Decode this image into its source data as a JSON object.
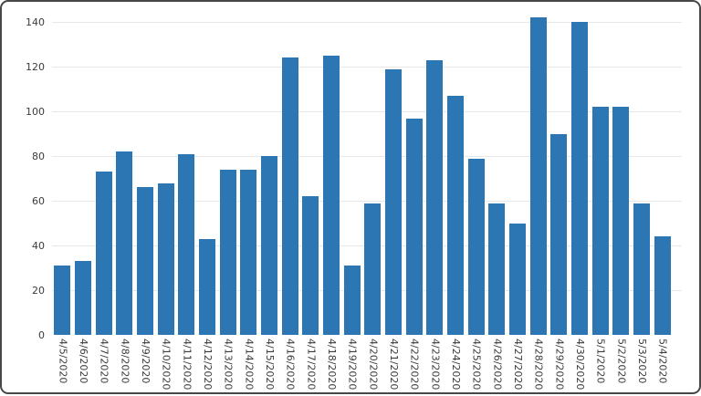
{
  "chart_data": {
    "type": "bar",
    "title": "",
    "subtitle": "",
    "xlabel": "",
    "ylabel": "",
    "categories": [
      "4/5/2020",
      "4/6/2020",
      "4/7/2020",
      "4/8/2020",
      "4/9/2020",
      "4/10/2020",
      "4/11/2020",
      "4/12/2020",
      "4/13/2020",
      "4/14/2020",
      "4/15/2020",
      "4/16/2020",
      "4/17/2020",
      "4/18/2020",
      "4/19/2020",
      "4/20/2020",
      "4/21/2020",
      "4/22/2020",
      "4/23/2020",
      "4/24/2020",
      "4/25/2020",
      "4/26/2020",
      "4/27/2020",
      "4/28/2020",
      "4/29/2020",
      "4/30/2020",
      "5/1/2020",
      "5/2/2020",
      "5/3/2020",
      "5/4/2020"
    ],
    "values": [
      31,
      33,
      73,
      82,
      66,
      68,
      81,
      43,
      74,
      74,
      80,
      124,
      62,
      125,
      31,
      59,
      119,
      97,
      123,
      107,
      79,
      59,
      50,
      142,
      90,
      140,
      102,
      102,
      59,
      44
    ],
    "ylim": [
      0,
      145
    ],
    "yticks": [
      0,
      20,
      40,
      60,
      80,
      100,
      120,
      140
    ],
    "grid": "horizontal",
    "legend": "none",
    "x_tick_rotation": "vertical-top-to-bottom"
  },
  "colors": {
    "bar": "#2d76b4",
    "gridline": "#e8e8e8",
    "tick_text": "#3b3b3b",
    "frame_border": "#474747",
    "background": "#ffffff"
  }
}
